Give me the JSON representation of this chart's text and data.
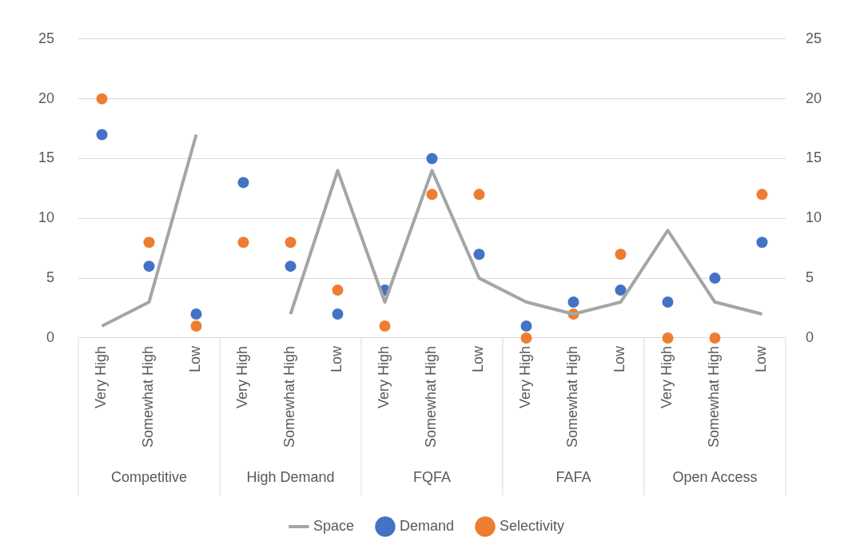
{
  "chart_data": {
    "type": "scatter",
    "categories": [
      "Very High",
      "Somewhat High",
      "Low",
      "Very High",
      "Somewhat High",
      "Low",
      "Very High",
      "Somewhat High",
      "Low",
      "Very High",
      "Somewhat High",
      "Low",
      "Very High",
      "Somewhat High",
      "Low"
    ],
    "annotations": [
      "Competitive",
      "High Demand",
      "FQFA",
      "FAFA",
      "Open Access"
    ],
    "series": [
      {
        "name": "Space",
        "type": "line",
        "marker": "none",
        "color": "#a5a5a5",
        "values": [
          1,
          3,
          17,
          null,
          2,
          14,
          3,
          14,
          5,
          3,
          2,
          3,
          9,
          3,
          2
        ]
      },
      {
        "name": "Demand",
        "marker": "circle",
        "color": "#4472c4",
        "values": [
          17,
          6,
          2,
          13,
          6,
          2,
          4,
          15,
          7,
          1,
          3,
          4,
          3,
          5,
          8
        ]
      },
      {
        "name": "Selectivity",
        "marker": "circle",
        "color": "#ed7d31",
        "values": [
          20,
          8,
          1,
          8,
          8,
          4,
          1,
          12,
          12,
          0,
          2,
          7,
          0,
          0,
          12
        ]
      }
    ],
    "ylim": [
      0,
      25
    ],
    "yticks": [
      0,
      5,
      10,
      15,
      20,
      25
    ],
    "y2lim": [
      0,
      25
    ],
    "y2ticks": [
      0,
      5,
      10,
      15,
      20,
      25
    ],
    "grid": "y",
    "legend": "bottom"
  }
}
